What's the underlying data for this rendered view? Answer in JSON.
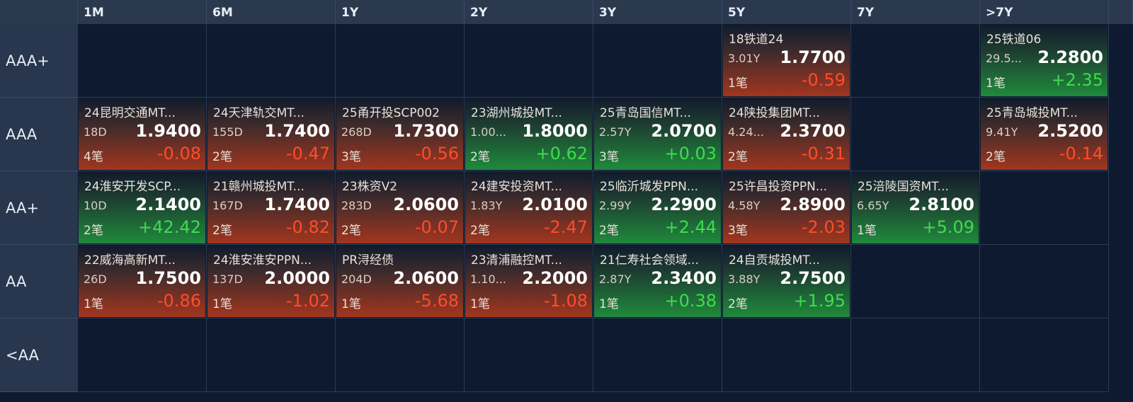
{
  "columns": [
    "1M",
    "6M",
    "1Y",
    "2Y",
    "3Y",
    "5Y",
    "7Y",
    ">7Y"
  ],
  "rows": [
    {
      "label": "AAA+",
      "cells": [
        null,
        null,
        null,
        null,
        null,
        {
          "name": "18铁道24",
          "term": "3.01Y",
          "yield": "1.7700",
          "count": "1笔",
          "change": "-0.59"
        },
        null,
        {
          "name": "25铁道06",
          "term": "29.5...",
          "yield": "2.2800",
          "count": "1笔",
          "change": "+2.35"
        }
      ]
    },
    {
      "label": "AAA",
      "cells": [
        {
          "name": "24昆明交通MT...",
          "term": "18D",
          "yield": "1.9400",
          "count": "4笔",
          "change": "-0.08"
        },
        {
          "name": "24天津轨交MT...",
          "term": "155D",
          "yield": "1.7400",
          "count": "2笔",
          "change": "-0.47"
        },
        {
          "name": "25甬开投SCP002",
          "term": "268D",
          "yield": "1.7300",
          "count": "3笔",
          "change": "-0.56"
        },
        {
          "name": "23湖州城投MT...",
          "term": "1.00...",
          "yield": "1.8000",
          "count": "2笔",
          "change": "+0.62"
        },
        {
          "name": "25青岛国信MT...",
          "term": "2.57Y",
          "yield": "2.0700",
          "count": "3笔",
          "change": "+0.03"
        },
        {
          "name": "24陕投集团MT...",
          "term": "4.24...",
          "yield": "2.3700",
          "count": "2笔",
          "change": "-0.31"
        },
        null,
        {
          "name": "25青岛城投MT...",
          "term": "9.41Y",
          "yield": "2.5200",
          "count": "2笔",
          "change": "-0.14"
        }
      ]
    },
    {
      "label": "AA+",
      "cells": [
        {
          "name": "24淮安开发SCP...",
          "term": "10D",
          "yield": "2.1400",
          "count": "2笔",
          "change": "+42.42"
        },
        {
          "name": "21赣州城投MT...",
          "term": "167D",
          "yield": "1.7400",
          "count": "2笔",
          "change": "-0.82"
        },
        {
          "name": "23株资V2",
          "term": "283D",
          "yield": "2.0600",
          "count": "2笔",
          "change": "-0.07"
        },
        {
          "name": "24建安投资MT...",
          "term": "1.83Y",
          "yield": "2.0100",
          "count": "2笔",
          "change": "-2.47"
        },
        {
          "name": "25临沂城发PPN...",
          "term": "2.99Y",
          "yield": "2.2900",
          "count": "2笔",
          "change": "+2.44"
        },
        {
          "name": "25许昌投资PPN...",
          "term": "4.58Y",
          "yield": "2.8900",
          "count": "3笔",
          "change": "-2.03"
        },
        {
          "name": "25涪陵国资MT...",
          "term": "6.65Y",
          "yield": "2.8100",
          "count": "1笔",
          "change": "+5.09"
        },
        null
      ]
    },
    {
      "label": "AA",
      "cells": [
        {
          "name": "22威海高新MT...",
          "term": "26D",
          "yield": "1.7500",
          "count": "1笔",
          "change": "-0.86"
        },
        {
          "name": "24淮安淮安PPN...",
          "term": "137D",
          "yield": "2.0000",
          "count": "1笔",
          "change": "-1.02"
        },
        {
          "name": "PR浔经债",
          "term": "204D",
          "yield": "2.0600",
          "count": "1笔",
          "change": "-5.68"
        },
        {
          "name": "23清浦融控MT...",
          "term": "1.10...",
          "yield": "2.2000",
          "count": "1笔",
          "change": "-1.08"
        },
        {
          "name": "21仁寿社会领域...",
          "term": "2.87Y",
          "yield": "2.3400",
          "count": "1笔",
          "change": "+0.38"
        },
        {
          "name": "24自贡城投MT...",
          "term": "3.88Y",
          "yield": "2.7500",
          "count": "2笔",
          "change": "+1.95"
        },
        null,
        null
      ]
    },
    {
      "label": "<AA",
      "cells": [
        null,
        null,
        null,
        null,
        null,
        null,
        null,
        null
      ]
    }
  ]
}
